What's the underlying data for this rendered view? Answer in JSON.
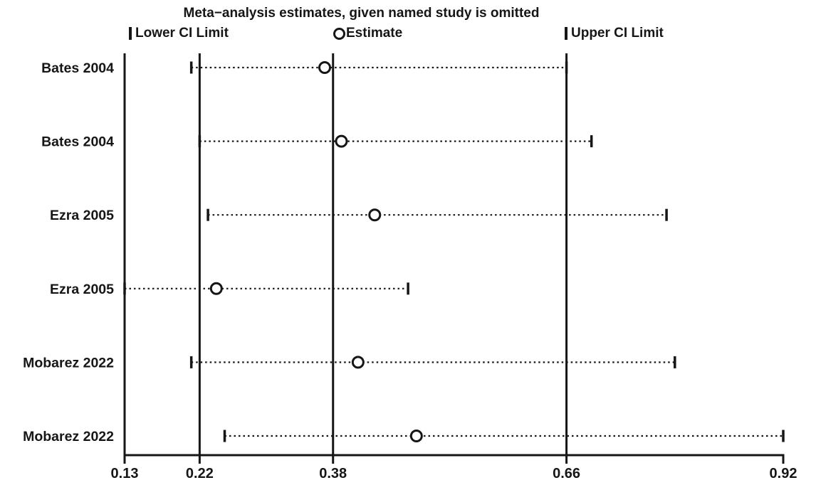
{
  "chart_data": {
    "type": "scatter",
    "chart_kind": "leave-one-out-meta-analysis-forest",
    "title": "Meta−analysis estimates, given named study is omitted",
    "legend_labels": {
      "lower": "Lower CI Limit",
      "estimate": "Estimate",
      "upper": "Upper CI Limit"
    },
    "xlim": [
      0.13,
      0.92
    ],
    "x_ticks": [
      0.13,
      0.22,
      0.38,
      0.66,
      0.92
    ],
    "reference_lines": {
      "overall_lower": 0.22,
      "overall_estimate": 0.38,
      "overall_upper": 0.66
    },
    "grid": "off",
    "legend_position": "top",
    "line_color": "#161616",
    "background_color": "#ffffff",
    "studies": [
      {
        "label": "Bates 2004",
        "lower": 0.21,
        "estimate": 0.37,
        "upper": 0.66
      },
      {
        "label": "Bates 2004",
        "lower": 0.22,
        "estimate": 0.39,
        "upper": 0.69
      },
      {
        "label": "Ezra 2005",
        "lower": 0.23,
        "estimate": 0.43,
        "upper": 0.78
      },
      {
        "label": "Ezra 2005",
        "lower": 0.13,
        "estimate": 0.24,
        "upper": 0.47
      },
      {
        "label": "Mobarez 2022",
        "lower": 0.21,
        "estimate": 0.41,
        "upper": 0.79
      },
      {
        "label": "Mobarez 2022",
        "lower": 0.25,
        "estimate": 0.48,
        "upper": 0.92
      }
    ]
  }
}
